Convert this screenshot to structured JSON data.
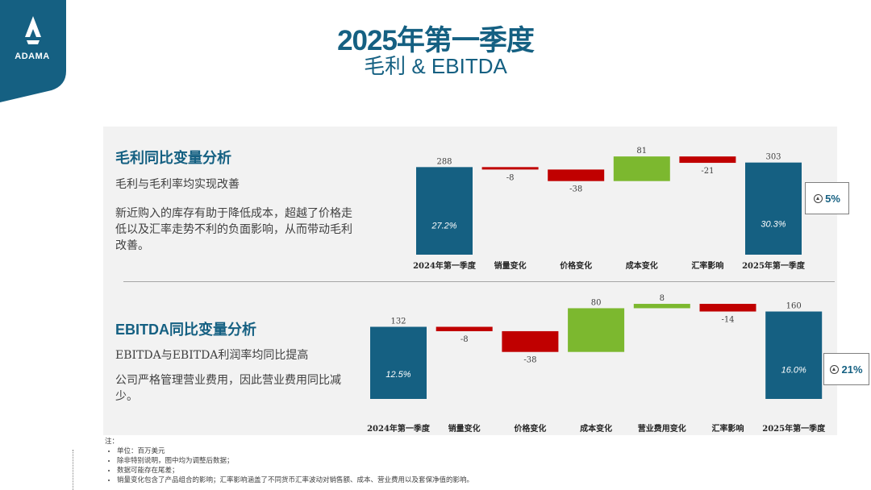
{
  "logo": {
    "text": "ADAMA"
  },
  "header": {
    "title": "2025年第一季度",
    "subtitle": "毛利 & EBITDA"
  },
  "gross_profit": {
    "title": "毛利同比变量分析",
    "subtitle": "毛利与毛利率均实现改善",
    "description": "新近购入的库存有助于降低成本，超越了价格走低以及汇率走势不利的负面影响，从而带动毛利改善。",
    "change_pct": "5%"
  },
  "ebitda": {
    "title": "EBITDA同比变量分析",
    "subtitle": "EBITDA与EBITDA利润率均同比提高",
    "description": "公司严格管理营业费用，因此营业费用同比减少。",
    "change_pct": "21%"
  },
  "colors": {
    "total": "#156082",
    "negative": "#c00000",
    "positive": "#7cb82f"
  },
  "chart_data": [
    {
      "type": "bar",
      "subtype": "waterfall",
      "categories": [
        "2024年第一季度",
        "销量变化",
        "价格变化",
        "成本变化",
        "汇率影响",
        "2025年第一季度"
      ],
      "values": [
        288,
        -8,
        -38,
        81,
        -21,
        303
      ],
      "value_labels": [
        "288",
        "-8",
        "-38",
        "81",
        "-21",
        "303"
      ],
      "bar_kinds": [
        "total",
        "negative",
        "negative",
        "positive",
        "negative",
        "total"
      ],
      "inner_labels": [
        "27.2%",
        "",
        "",
        "",
        "",
        "30.3%"
      ]
    },
    {
      "type": "bar",
      "subtype": "waterfall",
      "categories": [
        "2024年第一季度",
        "销量变化",
        "价格变化",
        "成本变化",
        "营业费用变化",
        "汇率影响",
        "2025年第一季度"
      ],
      "values": [
        132,
        -8,
        -38,
        80,
        8,
        -14,
        160
      ],
      "value_labels": [
        "132",
        "-8",
        "-38",
        "80",
        "8",
        "-14",
        "160"
      ],
      "bar_kinds": [
        "total",
        "negative",
        "negative",
        "positive",
        "positive",
        "negative",
        "total"
      ],
      "inner_labels": [
        "12.5%",
        "",
        "",
        "",
        "",
        "",
        "16.0%"
      ]
    }
  ],
  "notes": {
    "heading": "注：",
    "items": [
      "单位：百万美元",
      "除非特别说明，图中均为调整后数据；",
      "数据可能存在尾差；",
      "销量变化包含了产品组合的影响；汇率影响涵盖了不同货币汇率波动对销售额、成本、营业费用以及套保净值的影响。"
    ]
  }
}
